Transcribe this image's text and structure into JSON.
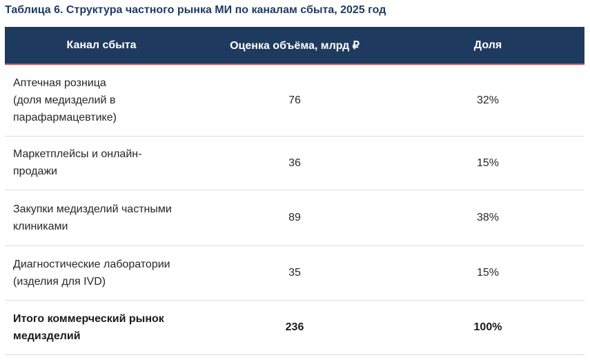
{
  "title": "Таблица 6. Структура частного рынка МИ по каналам сбыта, 2025 год",
  "table": {
    "headers": [
      "Канал сбыта",
      "Оценка объёма, млрд ₽",
      "Доля"
    ],
    "rows": [
      {
        "channel": "Аптечная розница (доля медизделий в парафармацевтике)",
        "volume": "76",
        "share": "32%"
      },
      {
        "channel": "Маркетплейсы и онлайн-продажи",
        "volume": "36",
        "share": "15%"
      },
      {
        "channel": "Закупки медизделий частными клиниками",
        "volume": "89",
        "share": "38%"
      },
      {
        "channel": "Диагностические лаборатории (изделия для IVD)",
        "volume": "35",
        "share": "15%"
      },
      {
        "channel": "Итого коммерческий рынок медизделий",
        "volume": "236",
        "share": "100%"
      }
    ]
  },
  "colors": {
    "header_bg": "#1f3a5f",
    "header_accent": "#c0504d",
    "title": "#1f3a5f"
  }
}
